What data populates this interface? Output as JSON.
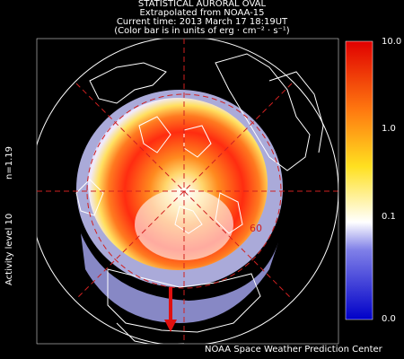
{
  "header": {
    "line1": "STATISTICAL AURORAL OVAL",
    "line2": "Extrapolated from NOAA-15",
    "line3": "Current time: 2013 March 17 18:19UT",
    "line4": "(Color bar is in units of erg · cm⁻² · s⁻¹)"
  },
  "left_labels": {
    "n_value": "n=1.19",
    "activity": "Activity level 10"
  },
  "colorbar": {
    "ticks": [
      "10.0",
      "1.0",
      "0.1",
      "0.0"
    ]
  },
  "map": {
    "latitude_label": "60"
  },
  "footer": {
    "credit": "NOAA Space Weather Prediction Center"
  },
  "colors": {
    "background": "#000000",
    "grid_line": "#d02020",
    "coast_line": "#ffffff",
    "arrow": "#e01010"
  }
}
